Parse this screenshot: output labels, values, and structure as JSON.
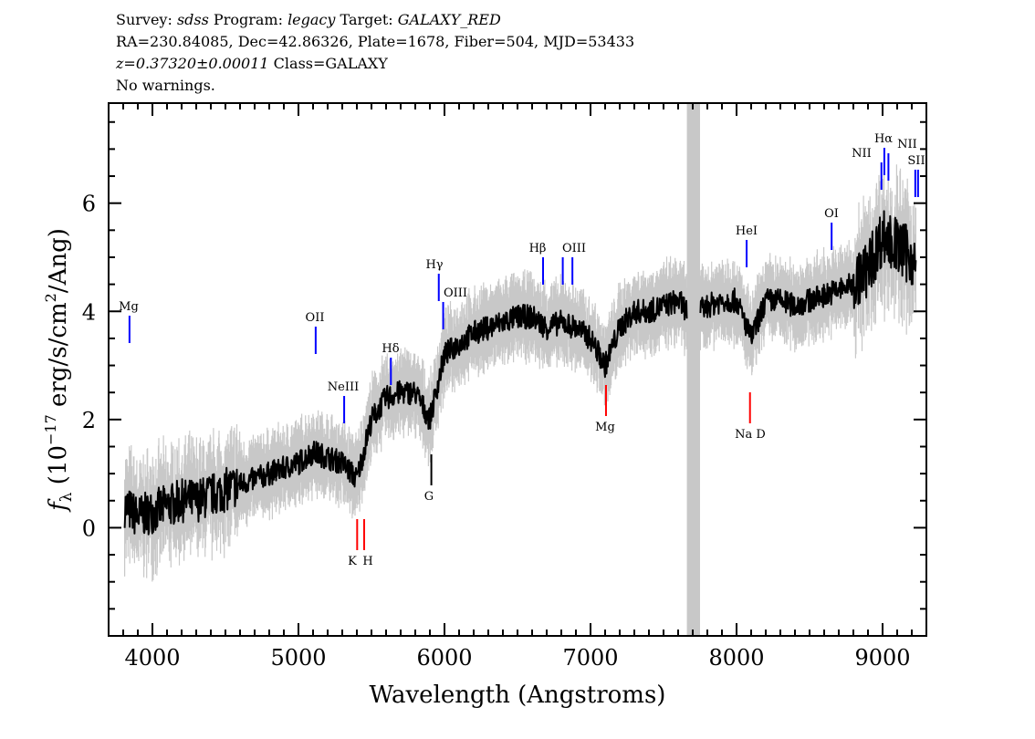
{
  "header": {
    "survey_label": "Survey:",
    "survey": "sdss",
    "program_label": "Program:",
    "program": "legacy",
    "target_label": "Target:",
    "target": "GALAXY_RED",
    "line2": "RA=230.84085, Dec=42.86326, Plate=1678, Fiber=504, MJD=53433",
    "redshift": "z=0.37320±0.00011",
    "class": "Class=GALAXY",
    "warnings": "No warnings."
  },
  "chart_data": {
    "type": "line",
    "xlabel": "Wavelength (Angstroms)",
    "ylabel": "f_λ (10^-17 erg/s/cm^2/Ang)",
    "ylabel_parts": {
      "f": "f",
      "sub": "λ",
      "pre": "(10",
      "exp": "−17",
      "mid": " erg/s/cm",
      "exp2": "2",
      "post": "/Ang)"
    },
    "xlim": [
      3700,
      9300
    ],
    "ylim": [
      -2.0,
      7.85
    ],
    "xticks": [
      "4000",
      "5000",
      "6000",
      "7000",
      "8000",
      "9000"
    ],
    "yticks": [
      "0",
      "2",
      "4",
      "6"
    ],
    "masked_region": [
      7660,
      7750
    ],
    "colors": {
      "flux": "#000000",
      "error": "#c8c8c8",
      "emission": "#0000ff",
      "absorption": "#ff0000",
      "neutral": "#000000",
      "mask": "#c8c8c8"
    },
    "series": [
      {
        "wavelength": [
          3810,
          3900,
          4000,
          4100,
          4200,
          4300,
          4400,
          4500,
          4600,
          4700,
          4800,
          4900,
          5000,
          5100,
          5200,
          5300,
          5400,
          5500,
          5600,
          5700,
          5800,
          5900,
          6000,
          6100,
          6200,
          6300,
          6400,
          6500,
          6600,
          6700,
          6800,
          6900,
          7000,
          7100,
          7200,
          7300,
          7400,
          7500,
          7600,
          7700,
          7800,
          7900,
          8000,
          8100,
          8200,
          8300,
          8400,
          8500,
          8600,
          8700,
          8800,
          8900,
          9000,
          9100,
          9200,
          9230
        ],
        "flux": [
          0.4,
          0.2,
          0.3,
          0.4,
          0.5,
          0.5,
          0.6,
          0.7,
          0.8,
          0.9,
          1.0,
          1.1,
          1.2,
          1.4,
          1.3,
          1.2,
          0.9,
          2.0,
          2.4,
          2.5,
          2.5,
          2.0,
          3.2,
          3.4,
          3.6,
          3.7,
          3.8,
          3.9,
          3.9,
          3.7,
          3.8,
          3.7,
          3.5,
          3.0,
          3.7,
          4.0,
          4.0,
          4.1,
          4.2,
          3.9,
          4.1,
          4.2,
          4.2,
          3.5,
          4.2,
          4.2,
          4.1,
          4.2,
          4.3,
          4.4,
          4.5,
          4.8,
          5.4,
          5.2,
          5.0,
          4.8
        ]
      }
    ],
    "lines": [
      {
        "label": "Mg",
        "wavelength": 3843,
        "type": "emission"
      },
      {
        "label": "OII",
        "wavelength": 5118,
        "type": "emission"
      },
      {
        "label": "NeIII",
        "wavelength": 5313,
        "type": "emission"
      },
      {
        "label": "K",
        "wavelength": 5402,
        "type": "absorption"
      },
      {
        "label": "H",
        "wavelength": 5450,
        "type": "absorption"
      },
      {
        "label": "Hδ",
        "wavelength": 5633,
        "type": "emission"
      },
      {
        "label": "G",
        "wavelength": 5910,
        "type": "neutral"
      },
      {
        "label": "Hγ",
        "wavelength": 5961,
        "type": "emission"
      },
      {
        "label": "OIII",
        "wavelength": 5991,
        "type": "emission"
      },
      {
        "label": "Hβ",
        "wavelength": 6675,
        "type": "emission"
      },
      {
        "label": "OIII",
        "wavelength": 6810,
        "type": "emission"
      },
      {
        "label": "",
        "wavelength": 6876,
        "type": "emission"
      },
      {
        "label": "Mg",
        "wavelength": 7106,
        "type": "absorption"
      },
      {
        "label": "HeI",
        "wavelength": 8069,
        "type": "emission"
      },
      {
        "label": "Na D",
        "wavelength": 8092,
        "type": "absorption"
      },
      {
        "label": "OI",
        "wavelength": 8651,
        "type": "emission"
      },
      {
        "label": "NII",
        "wavelength": 8992,
        "type": "emission"
      },
      {
        "label": "Hα",
        "wavelength": 9012,
        "type": "emission"
      },
      {
        "label": "NII",
        "wavelength": 9040,
        "type": "emission"
      },
      {
        "label": "SII",
        "wavelength": 9224,
        "type": "emission"
      },
      {
        "label": "",
        "wavelength": 9243,
        "type": "emission"
      }
    ]
  }
}
